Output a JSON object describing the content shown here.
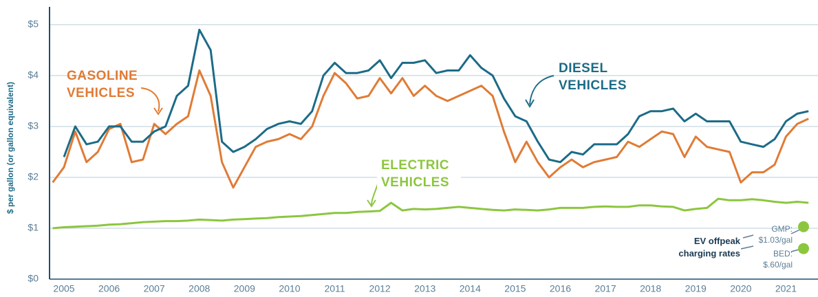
{
  "chart_data": {
    "type": "line",
    "y_axis_label": "$ per gallon (or gallon equivalent)",
    "x": [
      2005.25,
      2005.5,
      2005.75,
      2006,
      2006.25,
      2006.5,
      2006.75,
      2007,
      2007.25,
      2007.5,
      2007.75,
      2008,
      2008.25,
      2008.5,
      2008.75,
      2009,
      2009.25,
      2009.5,
      2009.75,
      2010,
      2010.25,
      2010.5,
      2010.75,
      2011,
      2011.25,
      2011.5,
      2011.75,
      2012,
      2012.25,
      2012.5,
      2012.75,
      2013,
      2013.25,
      2013.5,
      2013.75,
      2014,
      2014.25,
      2014.5,
      2014.75,
      2015,
      2015.25,
      2015.5,
      2015.75,
      2016,
      2016.25,
      2016.5,
      2016.75,
      2017,
      2017.25,
      2017.5,
      2017.75,
      2018,
      2018.25,
      2018.5,
      2018.75,
      2019,
      2019.25,
      2019.5,
      2019.75,
      2020,
      2020.25,
      2020.5,
      2020.75,
      2021,
      2021.25,
      2021.5,
      2021.75,
      2022
    ],
    "series": [
      {
        "name": "GASOLINE VEHICLES",
        "color": "#e07b35",
        "values": [
          1.9,
          2.2,
          2.9,
          2.3,
          2.5,
          2.95,
          3.05,
          2.3,
          2.35,
          3.05,
          2.85,
          3.05,
          3.2,
          4.1,
          3.6,
          2.3,
          1.8,
          2.2,
          2.6,
          2.7,
          2.75,
          2.85,
          2.75,
          3.0,
          3.6,
          4.05,
          3.85,
          3.55,
          3.6,
          3.95,
          3.65,
          3.95,
          3.6,
          3.8,
          3.6,
          3.5,
          3.6,
          3.7,
          3.8,
          3.6,
          2.9,
          2.3,
          2.7,
          2.3,
          2.0,
          2.2,
          2.35,
          2.2,
          2.3,
          2.35,
          2.4,
          2.7,
          2.6,
          2.75,
          2.9,
          2.85,
          2.4,
          2.8,
          2.6,
          2.55,
          2.5,
          1.9,
          2.1,
          2.1,
          2.25,
          2.8,
          3.05,
          3.15
        ]
      },
      {
        "name": "DIESEL VEHICLES",
        "color": "#1c6b87",
        "values": [
          null,
          2.4,
          3.0,
          2.65,
          2.7,
          3.0,
          3.0,
          2.7,
          2.7,
          2.9,
          3.0,
          3.6,
          3.8,
          4.9,
          4.5,
          2.7,
          2.5,
          2.6,
          2.75,
          2.95,
          3.05,
          3.1,
          3.05,
          3.3,
          4.0,
          4.25,
          4.05,
          4.05,
          4.1,
          4.3,
          3.95,
          4.25,
          4.25,
          4.3,
          4.05,
          4.1,
          4.1,
          4.4,
          4.15,
          4.0,
          3.55,
          3.2,
          3.1,
          2.7,
          2.35,
          2.3,
          2.5,
          2.45,
          2.65,
          2.65,
          2.65,
          2.85,
          3.2,
          3.3,
          3.3,
          3.35,
          3.1,
          3.25,
          3.1,
          3.1,
          3.1,
          2.7,
          2.65,
          2.6,
          2.75,
          3.1,
          3.25,
          3.3
        ]
      },
      {
        "name": "ELECTRIC VEHICLES",
        "color": "#8cc63f",
        "values": [
          1.0,
          1.02,
          1.03,
          1.04,
          1.05,
          1.07,
          1.08,
          1.1,
          1.12,
          1.13,
          1.14,
          1.14,
          1.15,
          1.17,
          1.16,
          1.15,
          1.17,
          1.18,
          1.19,
          1.2,
          1.22,
          1.23,
          1.24,
          1.26,
          1.28,
          1.3,
          1.3,
          1.32,
          1.33,
          1.34,
          1.5,
          1.35,
          1.38,
          1.37,
          1.38,
          1.4,
          1.42,
          1.4,
          1.38,
          1.36,
          1.35,
          1.37,
          1.36,
          1.35,
          1.37,
          1.4,
          1.4,
          1.4,
          1.42,
          1.43,
          1.42,
          1.42,
          1.45,
          1.45,
          1.43,
          1.42,
          1.35,
          1.38,
          1.4,
          1.58,
          1.55,
          1.55,
          1.57,
          1.55,
          1.52,
          1.5,
          1.52,
          1.5
        ]
      }
    ],
    "rates_title": "EV offpeak charging rates",
    "rates": [
      {
        "label": "GMP: $1.03/gal",
        "value": 1.03,
        "color": "#8cc63f"
      },
      {
        "label": "BED: $.60/gal",
        "value": 0.6,
        "color": "#8cc63f"
      }
    ],
    "xlim": [
      2005.18,
      2022.21
    ],
    "xticks": [
      {
        "value": 2005.5,
        "label": "2005"
      },
      {
        "value": 2006.5,
        "label": "2006"
      },
      {
        "value": 2007.5,
        "label": "2007"
      },
      {
        "value": 2008.5,
        "label": "2008"
      },
      {
        "value": 2009.5,
        "label": "2009"
      },
      {
        "value": 2010.5,
        "label": "2010"
      },
      {
        "value": 2011.5,
        "label": "2011"
      },
      {
        "value": 2012.5,
        "label": "2012"
      },
      {
        "value": 2013.5,
        "label": "2013"
      },
      {
        "value": 2014.5,
        "label": "2014"
      },
      {
        "value": 2015.5,
        "label": "2015"
      },
      {
        "value": 2016.5,
        "label": "2016"
      },
      {
        "value": 2017.5,
        "label": "2017"
      },
      {
        "value": 2018.5,
        "label": "2018"
      },
      {
        "value": 2019.5,
        "label": "2019"
      },
      {
        "value": 2020.5,
        "label": "2020"
      },
      {
        "value": 2021.5,
        "label": "2021"
      }
    ],
    "ylim": [
      0,
      5.35
    ],
    "yticks": [
      {
        "value": 0,
        "label": "$0"
      },
      {
        "value": 1,
        "label": "$1"
      },
      {
        "value": 2,
        "label": "$2"
      },
      {
        "value": 3,
        "label": "$3"
      },
      {
        "value": 4,
        "label": "$4"
      },
      {
        "value": 5,
        "label": "$5"
      }
    ],
    "grid": true
  }
}
